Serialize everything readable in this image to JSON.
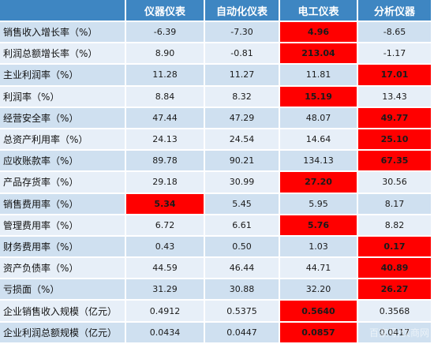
{
  "table": {
    "headers": [
      "",
      "仪器仪表",
      "自动化仪表",
      "电工仪表",
      "分析仪器"
    ],
    "highlight_color": "#ff0000",
    "rows": [
      {
        "label": "销售收入增长率（%）",
        "values": [
          "-6.39",
          "-7.30",
          "4.96",
          "-8.65"
        ],
        "highlight": [
          false,
          false,
          true,
          false
        ]
      },
      {
        "label": "利润总额增长率（%）",
        "values": [
          "8.90",
          "-0.81",
          "213.04",
          "-1.17"
        ],
        "highlight": [
          false,
          false,
          true,
          false
        ]
      },
      {
        "label": "主业利润率（%）",
        "values": [
          "11.28",
          "11.27",
          "11.81",
          "17.01"
        ],
        "highlight": [
          false,
          false,
          false,
          true
        ]
      },
      {
        "label": "利润率（%）",
        "values": [
          "8.84",
          "8.32",
          "15.19",
          "13.43"
        ],
        "highlight": [
          false,
          false,
          true,
          false
        ]
      },
      {
        "label": "经营安全率（%）",
        "values": [
          "47.44",
          "47.29",
          "48.07",
          "49.77"
        ],
        "highlight": [
          false,
          false,
          false,
          true
        ]
      },
      {
        "label": "总资产利用率（%）",
        "values": [
          "24.13",
          "24.54",
          "14.64",
          "25.10"
        ],
        "highlight": [
          false,
          false,
          false,
          true
        ]
      },
      {
        "label": "应收账款率（%）",
        "values": [
          "89.78",
          "90.21",
          "134.13",
          "67.35"
        ],
        "highlight": [
          false,
          false,
          false,
          true
        ]
      },
      {
        "label": "产品存货率（%）",
        "values": [
          "29.18",
          "30.99",
          "27.20",
          "30.56"
        ],
        "highlight": [
          false,
          false,
          true,
          false
        ]
      },
      {
        "label": "销售费用率（%）",
        "values": [
          "5.34",
          "5.45",
          "5.95",
          "8.17"
        ],
        "highlight": [
          true,
          false,
          false,
          false
        ]
      },
      {
        "label": "管理费用率（%）",
        "values": [
          "6.72",
          "6.61",
          "5.76",
          "8.82"
        ],
        "highlight": [
          false,
          false,
          true,
          false
        ]
      },
      {
        "label": "财务费用率（%）",
        "values": [
          "0.43",
          "0.50",
          "1.03",
          "0.17"
        ],
        "highlight": [
          false,
          false,
          false,
          true
        ]
      },
      {
        "label": "资产负债率（%）",
        "values": [
          "44.59",
          "46.44",
          "44.71",
          "40.89"
        ],
        "highlight": [
          false,
          false,
          false,
          true
        ]
      },
      {
        "label": "亏损面（%）",
        "values": [
          "31.29",
          "30.88",
          "32.20",
          "26.27"
        ],
        "highlight": [
          false,
          false,
          false,
          true
        ]
      },
      {
        "label": "企业销售收入规模（亿元）",
        "values": [
          "0.4912",
          "0.5375",
          "0.5640",
          "0.3568"
        ],
        "highlight": [
          false,
          false,
          true,
          false
        ]
      },
      {
        "label": "企业利润总额规模（亿元）",
        "values": [
          "0.0434",
          "0.0447",
          "0.0857",
          "0.0417"
        ],
        "highlight": [
          false,
          false,
          true,
          false
        ]
      }
    ]
  },
  "watermark": "百家号/仪商网"
}
